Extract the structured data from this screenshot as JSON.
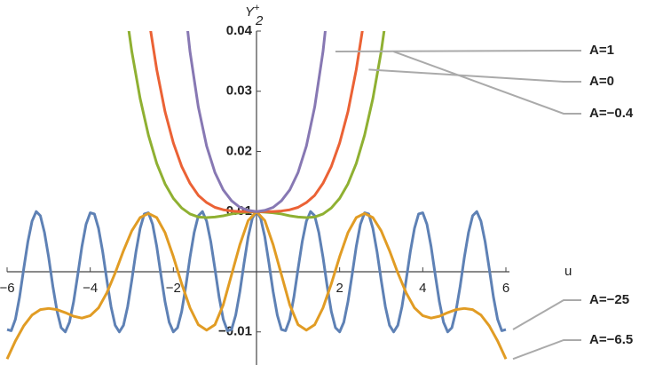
{
  "chart_data": {
    "type": "line",
    "xlabel": "u",
    "ylabel": "Y",
    "ylabel_sub": "2",
    "ylabel_sup": "+",
    "xlim": [
      -6,
      6
    ],
    "ylim": [
      -0.0155,
      0.04
    ],
    "xticks": [
      {
        "value": -6,
        "label": "−6"
      },
      {
        "value": -4,
        "label": "−4"
      },
      {
        "value": -2,
        "label": "−2"
      },
      2,
      4,
      6
    ],
    "yticks": [
      {
        "value": -0.01,
        "label": "−0.01"
      },
      0.01,
      0.02,
      0.03,
      0.04
    ],
    "series": [
      {
        "name": "A=−25",
        "color": "#5e81b5",
        "x": [
          -6,
          -5.9,
          -5.8,
          -5.7,
          -5.6,
          -5.5,
          -5.4,
          -5.3,
          -5.2,
          -5.1,
          -5,
          -4.9,
          -4.8,
          -4.7,
          -4.6,
          -4.5,
          -4.4,
          -4.3,
          -4.2,
          -4.1,
          -4,
          -3.9,
          -3.8,
          -3.7,
          -3.6,
          -3.5,
          -3.4,
          -3.3,
          -3.2,
          -3.1,
          -3,
          -2.9,
          -2.8,
          -2.7,
          -2.6,
          -2.5,
          -2.4,
          -2.3,
          -2.2,
          -2.1,
          -2,
          -1.9,
          -1.8,
          -1.7,
          -1.6,
          -1.5,
          -1.4,
          -1.3,
          -1.2,
          -1.1,
          -1,
          -0.9,
          -0.8,
          -0.7,
          -0.6,
          -0.5,
          -0.4,
          -0.3,
          -0.2,
          -0.1,
          0,
          0.1,
          0.2,
          0.3,
          0.4,
          0.5,
          0.6,
          0.7,
          0.8,
          0.9,
          1,
          1.1,
          1.2,
          1.3,
          1.4,
          1.5,
          1.6,
          1.7,
          1.8,
          1.9,
          2,
          2.1,
          2.2,
          2.3,
          2.4,
          2.5,
          2.6,
          2.7,
          2.8,
          2.9,
          3,
          3.1,
          3.2,
          3.3,
          3.4,
          3.5,
          3.6,
          3.7,
          3.8,
          3.9,
          4,
          4.1,
          4.2,
          4.3,
          4.4,
          4.5,
          4.6,
          4.7,
          4.8,
          4.9,
          5,
          5.1,
          5.2,
          5.3,
          5.4,
          5.5,
          5.6,
          5.7,
          5.8,
          5.9,
          6
        ],
        "values": [
          -0.0096,
          -0.0098,
          -0.0079,
          -0.0042,
          0.0005,
          0.005,
          0.0084,
          0.01,
          0.0093,
          0.0065,
          0.0024,
          -0.0024,
          -0.0065,
          -0.0093,
          -0.01,
          -0.0084,
          -0.005,
          -0.0005,
          0.0042,
          0.0079,
          0.0098,
          0.0096,
          0.0072,
          0.0033,
          -0.0014,
          -0.0058,
          -0.0089,
          -0.01,
          -0.0089,
          -0.0058,
          -0.0014,
          0.0033,
          0.0072,
          0.0096,
          0.0098,
          0.0079,
          0.0042,
          -0.0005,
          -0.005,
          -0.0084,
          -0.01,
          -0.0093,
          -0.0066,
          -0.0024,
          0.0024,
          0.0065,
          0.0093,
          0.01,
          0.0084,
          0.005,
          0.0005,
          -0.0042,
          -0.0079,
          -0.0098,
          -0.0096,
          -0.0072,
          -0.0033,
          0.0014,
          0.0058,
          0.0089,
          0.01,
          0.0089,
          0.0058,
          0.0014,
          -0.0033,
          -0.0072,
          -0.0096,
          -0.0098,
          -0.0079,
          -0.0042,
          0.0005,
          0.005,
          0.0084,
          0.01,
          0.0093,
          0.0065,
          0.0024,
          -0.0024,
          -0.0066,
          -0.0093,
          -0.01,
          -0.0084,
          -0.005,
          -0.0005,
          0.0042,
          0.0079,
          0.0098,
          0.0096,
          0.0072,
          0.0033,
          -0.0014,
          -0.0058,
          -0.0089,
          -0.01,
          -0.0089,
          -0.0058,
          -0.0014,
          0.0033,
          0.0072,
          0.0096,
          0.0098,
          0.0079,
          0.0042,
          -0.0005,
          -0.005,
          -0.0084,
          -0.01,
          -0.0093,
          -0.0065,
          -0.0024,
          0.0024,
          0.0065,
          0.0093,
          0.01,
          0.0084,
          0.005,
          0.0005,
          -0.0042,
          -0.0079,
          -0.0098,
          -0.0096
        ]
      },
      {
        "name": "A=−6.5",
        "color": "#e19c24",
        "x": [
          -6,
          -5.8,
          -5.6,
          -5.4,
          -5.2,
          -5,
          -4.8,
          -4.6,
          -4.4,
          -4.2,
          -4,
          -3.8,
          -3.6,
          -3.4,
          -3.2,
          -3,
          -2.8,
          -2.6,
          -2.4,
          -2.2,
          -2,
          -1.8,
          -1.6,
          -1.4,
          -1.2,
          -1,
          -0.8,
          -0.6,
          -0.4,
          -0.2,
          0,
          0.2,
          0.4,
          0.6,
          0.8,
          1,
          1.2,
          1.4,
          1.6,
          1.8,
          2,
          2.2,
          2.4,
          2.6,
          2.8,
          3,
          3.2,
          3.4,
          3.6,
          3.8,
          4,
          4.2,
          4.4,
          4.6,
          4.8,
          5,
          5.2,
          5.4,
          5.6,
          5.8,
          6
        ],
        "values": [
          -0.0145,
          -0.0115,
          -0.009,
          -0.0072,
          -0.0063,
          -0.0061,
          -0.0063,
          -0.0068,
          -0.0074,
          -0.0077,
          -0.0073,
          -0.006,
          -0.0035,
          -0.0002,
          0.0035,
          0.0068,
          0.009,
          0.0097,
          0.009,
          0.0065,
          0.0025,
          -0.002,
          -0.006,
          -0.0088,
          -0.0097,
          -0.0088,
          -0.0055,
          -0.0005,
          0.0045,
          0.0085,
          0.01,
          0.0085,
          0.0045,
          -0.0005,
          -0.0055,
          -0.0088,
          -0.0097,
          -0.0088,
          -0.006,
          -0.002,
          0.0025,
          0.0065,
          0.009,
          0.0097,
          0.009,
          0.0068,
          0.0035,
          -0.0002,
          -0.0035,
          -0.006,
          -0.0073,
          -0.0077,
          -0.0074,
          -0.0068,
          -0.0063,
          -0.0061,
          -0.0063,
          -0.0072,
          -0.009,
          -0.0115,
          -0.0145
        ]
      },
      {
        "name": "A=−0.4",
        "color": "#8fb032",
        "x": [
          -3.2,
          -3,
          -2.8,
          -2.6,
          -2.4,
          -2.2,
          -2,
          -1.8,
          -1.6,
          -1.4,
          -1.2,
          -1,
          -0.8,
          -0.6,
          -0.4,
          -0.2,
          0,
          0.2,
          0.4,
          0.6,
          0.8,
          1,
          1.2,
          1.4,
          1.6,
          1.8,
          2,
          2.2,
          2.4,
          2.6,
          2.8,
          3,
          3.2
        ],
        "values": [
          0.0464,
          0.0366,
          0.0288,
          0.0227,
          0.018,
          0.0146,
          0.0122,
          0.0106,
          0.0096,
          0.0091,
          0.009,
          0.0091,
          0.0093,
          0.0096,
          0.0098,
          0.0099,
          0.01,
          0.0099,
          0.0098,
          0.0096,
          0.0093,
          0.0091,
          0.009,
          0.0091,
          0.0096,
          0.0106,
          0.0122,
          0.0146,
          0.018,
          0.0227,
          0.0288,
          0.0366,
          0.0464
        ]
      },
      {
        "name": "A=0",
        "color": "#eb6235",
        "x": [
          -2.6,
          -2.4,
          -2.2,
          -2,
          -1.8,
          -1.6,
          -1.4,
          -1.2,
          -1,
          -0.8,
          -0.6,
          -0.4,
          -0.2,
          0,
          0.2,
          0.4,
          0.6,
          0.8,
          1,
          1.2,
          1.4,
          1.6,
          1.8,
          2,
          2.2,
          2.4,
          2.6
        ],
        "values": [
          0.0424,
          0.0336,
          0.0266,
          0.0214,
          0.0175,
          0.0147,
          0.0127,
          0.0115,
          0.0107,
          0.0103,
          0.0101,
          0.01,
          0.01,
          0.01,
          0.01,
          0.01,
          0.0101,
          0.0103,
          0.0107,
          0.0115,
          0.0127,
          0.0147,
          0.0175,
          0.0214,
          0.0266,
          0.0336,
          0.0424
        ]
      },
      {
        "name": "A=1",
        "color": "#8778b3",
        "x": [
          -1.8,
          -1.6,
          -1.4,
          -1.2,
          -1,
          -0.8,
          -0.6,
          -0.4,
          -0.2,
          0,
          0.2,
          0.4,
          0.6,
          0.8,
          1,
          1.2,
          1.4,
          1.6,
          1.8
        ],
        "values": [
          0.0492,
          0.0366,
          0.0274,
          0.0209,
          0.0165,
          0.0136,
          0.0118,
          0.0107,
          0.0102,
          0.01,
          0.0102,
          0.0107,
          0.0118,
          0.0136,
          0.0165,
          0.0209,
          0.0274,
          0.0366,
          0.0492
        ]
      }
    ]
  }
}
